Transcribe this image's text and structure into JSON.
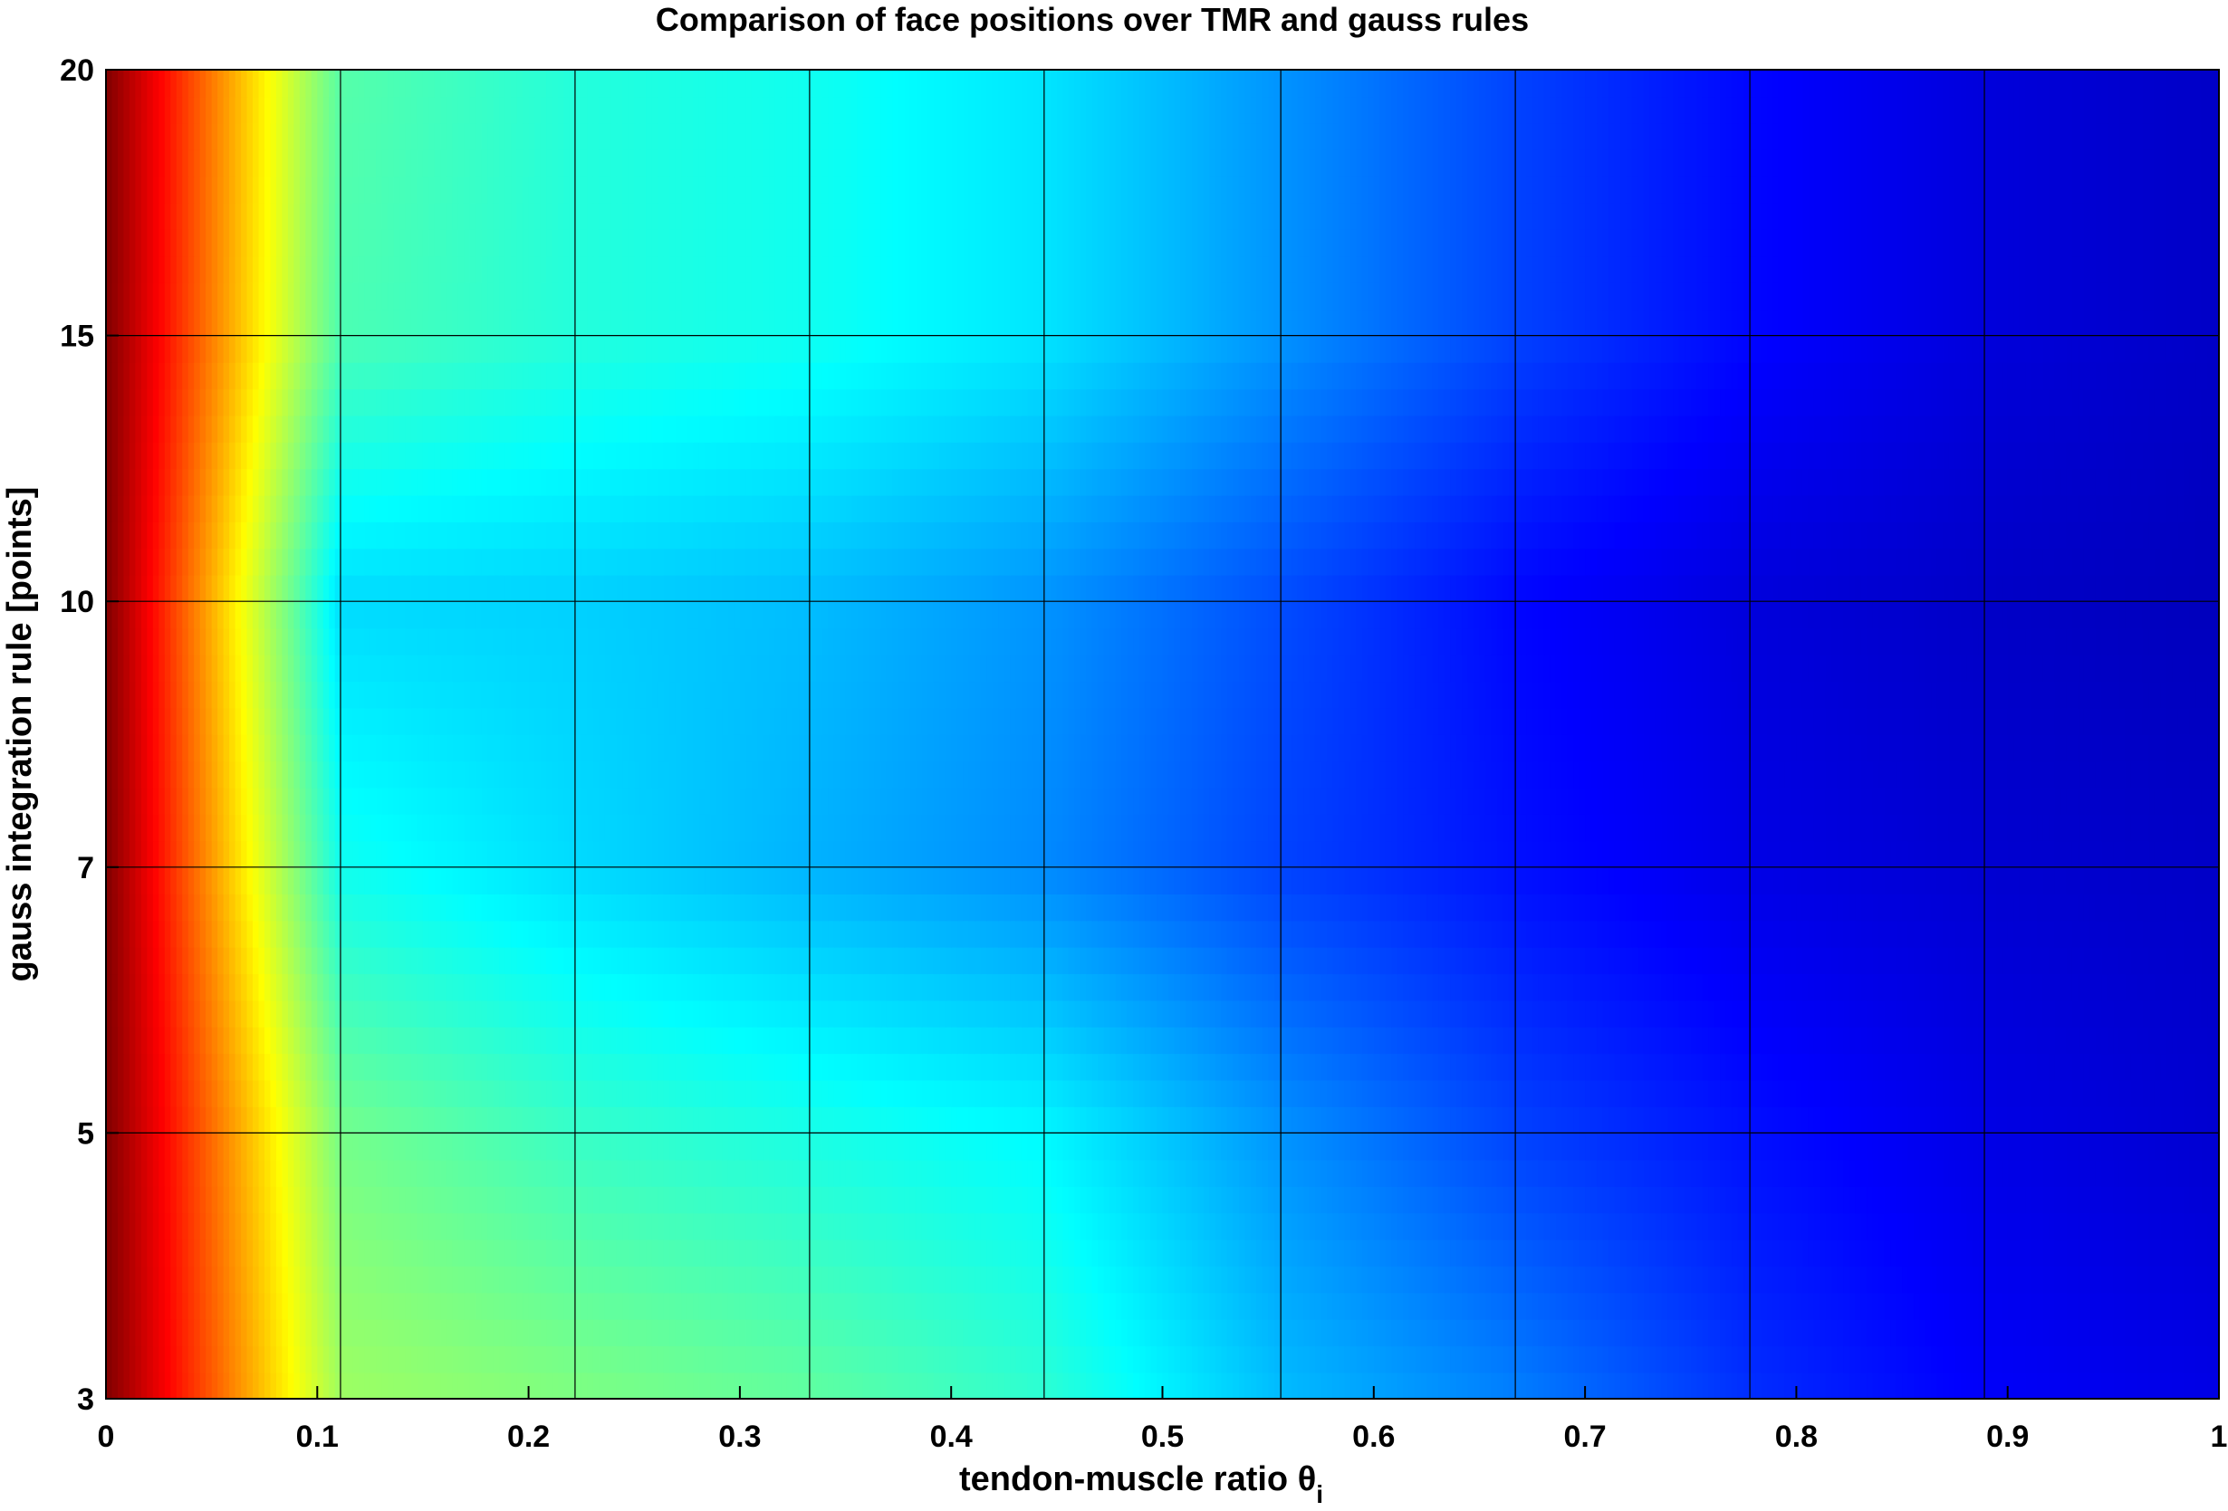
{
  "chart_data": {
    "type": "heatmap",
    "title": "Comparison of face positions over TMR and gauss rules",
    "xlabel": "tendon-muscle ratio θ",
    "xlabel_subscript": "i",
    "ylabel": "gauss integration rule [points]",
    "x_ticks": [
      "0",
      "0.1",
      "0.2",
      "0.3",
      "0.4",
      "0.5",
      "0.6",
      "0.7",
      "0.8",
      "0.9",
      "1"
    ],
    "y_ticks": [
      "3",
      "5",
      "7",
      "10",
      "15",
      "20"
    ],
    "xlim": [
      0,
      1
    ],
    "y_categories": [
      3,
      5,
      7,
      10,
      15,
      20
    ],
    "x_grid": [
      0,
      0.111,
      0.222,
      0.333,
      0.444,
      0.556,
      0.667,
      0.778,
      0.889,
      1
    ],
    "grid": true,
    "colormap": "jet",
    "z_range": [
      0,
      1
    ],
    "z_values": [
      [
        1.0,
        0.53,
        0.5,
        0.47,
        0.42,
        0.31,
        0.25,
        0.17,
        0.12,
        0.1
      ],
      [
        1.0,
        0.49,
        0.43,
        0.4,
        0.37,
        0.27,
        0.19,
        0.14,
        0.1,
        0.08
      ],
      [
        1.0,
        0.39,
        0.34,
        0.3,
        0.26,
        0.19,
        0.14,
        0.1,
        0.08,
        0.07
      ],
      [
        1.0,
        0.34,
        0.33,
        0.31,
        0.27,
        0.2,
        0.13,
        0.09,
        0.07,
        0.06
      ],
      [
        1.0,
        0.45,
        0.41,
        0.39,
        0.35,
        0.27,
        0.19,
        0.13,
        0.09,
        0.07
      ],
      [
        1.0,
        0.46,
        0.41,
        0.39,
        0.35,
        0.27,
        0.19,
        0.13,
        0.09,
        0.07
      ]
    ],
    "colors": {
      "grid": "#000000",
      "axis": "#000000",
      "background": "#ffffff"
    }
  }
}
